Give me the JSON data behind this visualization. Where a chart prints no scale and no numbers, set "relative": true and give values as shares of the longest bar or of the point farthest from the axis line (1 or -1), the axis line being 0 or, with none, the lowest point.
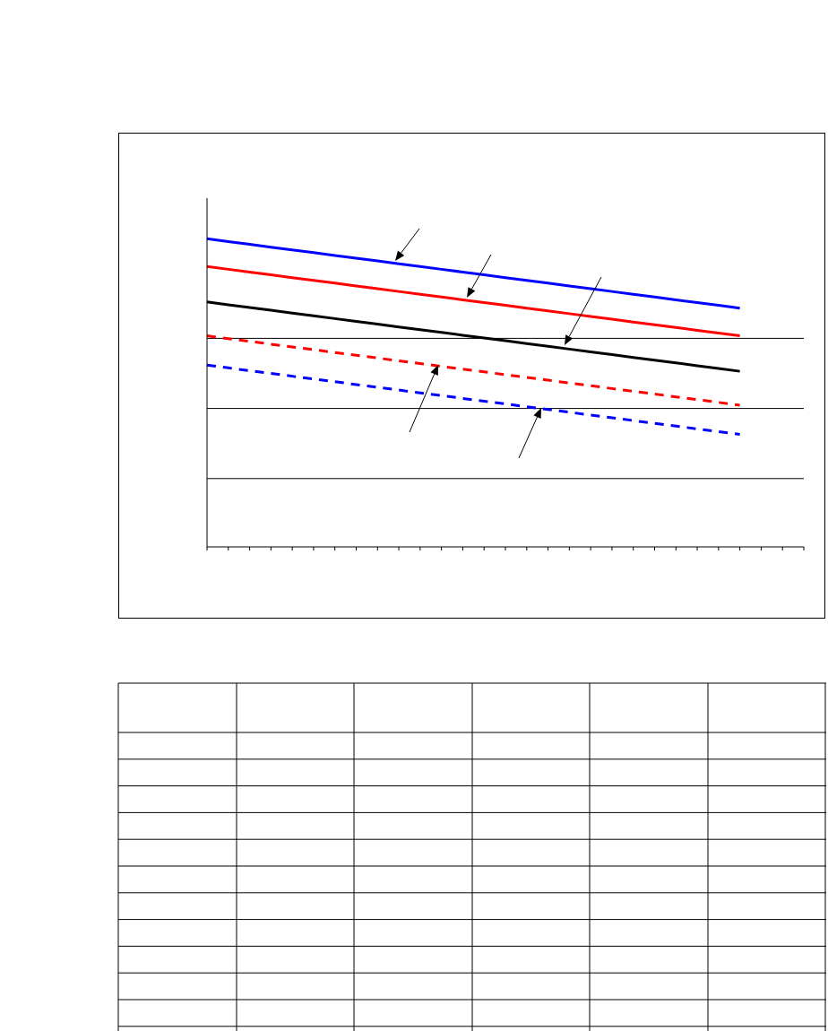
{
  "chart_data": {
    "type": "line",
    "relative": true,
    "grid": "y",
    "categories": [
      null,
      null,
      null,
      null,
      null,
      null,
      null,
      null,
      null,
      null,
      null,
      null,
      null,
      null,
      null,
      null,
      null,
      null,
      null,
      null,
      null,
      null,
      null,
      null,
      null,
      null,
      null,
      null,
      null
    ],
    "series": [
      {
        "color": "#0000ff",
        "line_style": "solid",
        "values": [
          1,
          0.991,
          0.982,
          0.973,
          0.964,
          0.955,
          0.946,
          0.937,
          0.928,
          0.919,
          0.91,
          0.901,
          0.892,
          0.883,
          0.874,
          0.865,
          0.856,
          0.847,
          0.838,
          0.829,
          0.82,
          0.811,
          0.802,
          0.793,
          0.784,
          0.775,
          null,
          null,
          null
        ]
      },
      {
        "color": "#ff0000",
        "line_style": "solid",
        "values": [
          0.91,
          0.901,
          0.892,
          0.883,
          0.874,
          0.865,
          0.856,
          0.847,
          0.838,
          0.829,
          0.82,
          0.811,
          0.802,
          0.793,
          0.784,
          0.775,
          0.766,
          0.757,
          0.748,
          0.739,
          0.73,
          0.721,
          0.712,
          0.703,
          0.694,
          0.685,
          null,
          null,
          null
        ]
      },
      {
        "color": "#000000",
        "line_style": "solid",
        "values": [
          0.795,
          0.786,
          0.777,
          0.768,
          0.759,
          0.75,
          0.741,
          0.732,
          0.723,
          0.714,
          0.705,
          0.696,
          0.687,
          0.678,
          0.669,
          0.66,
          0.651,
          0.642,
          0.633,
          0.624,
          0.615,
          0.606,
          0.597,
          0.588,
          0.579,
          0.57,
          null,
          null,
          null
        ]
      },
      {
        "color": "#ff0000",
        "line_style": "dashed",
        "values": [
          0.685,
          0.676,
          0.667,
          0.658,
          0.649,
          0.64,
          0.631,
          0.622,
          0.613,
          0.604,
          0.595,
          0.586,
          0.577,
          0.568,
          0.559,
          0.55,
          0.541,
          0.532,
          0.523,
          0.514,
          0.505,
          0.496,
          0.487,
          0.478,
          0.469,
          0.46,
          null,
          null,
          null
        ]
      },
      {
        "color": "#0000ff",
        "line_style": "dashed",
        "values": [
          0.59,
          0.581,
          0.572,
          0.563,
          0.554,
          0.545,
          0.536,
          0.527,
          0.518,
          0.509,
          0.5,
          0.491,
          0.482,
          0.473,
          0.464,
          0.455,
          0.446,
          0.437,
          0.428,
          0.419,
          0.41,
          0.401,
          0.392,
          0.383,
          0.374,
          0.365,
          null,
          null,
          null
        ]
      }
    ]
  }
}
